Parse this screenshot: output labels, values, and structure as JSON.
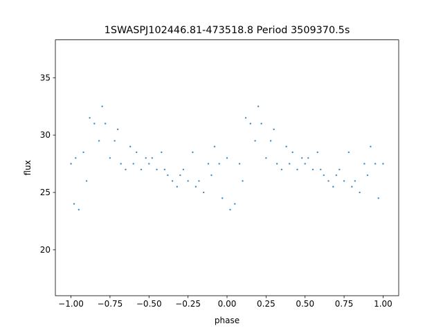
{
  "chart_data": {
    "type": "scatter",
    "title": "1SWASPJ102446.81-473518.8 Period 3509370.5s",
    "xlabel": "phase",
    "ylabel": "flux",
    "xlim": [
      -1.1,
      1.1
    ],
    "ylim": [
      16.0,
      38.3
    ],
    "xticks": [
      -1.0,
      -0.75,
      -0.5,
      -0.25,
      0.0,
      0.25,
      0.5,
      0.75,
      1.0
    ],
    "xtick_labels": [
      "−1.00",
      "−0.75",
      "−0.50",
      "−0.25",
      "0.00",
      "0.25",
      "0.50",
      "0.75",
      "1.00"
    ],
    "yticks": [
      20,
      25,
      30,
      35
    ],
    "ytick_labels": [
      "20",
      "25",
      "30",
      "35"
    ],
    "grid": false,
    "point_color": "#1f77b4",
    "series": [
      {
        "x": [
          -1.0,
          -0.98,
          -0.97,
          -0.95,
          -0.92,
          -0.9,
          -0.88,
          -0.85,
          -0.82,
          -0.8,
          -0.78,
          -0.75,
          -0.72,
          -0.7,
          -0.68,
          -0.65,
          -0.62,
          -0.6,
          -0.58,
          -0.55,
          -0.52,
          -0.5,
          -0.48,
          -0.45,
          -0.42,
          -0.4,
          -0.38,
          -0.35,
          -0.32,
          -0.3,
          -0.28,
          -0.25,
          -0.22,
          -0.2,
          -0.18,
          -0.15,
          -0.12,
          -0.1,
          -0.08,
          -0.05,
          -0.03,
          0.0,
          0.02,
          0.05,
          0.08,
          0.1,
          0.12,
          0.15,
          0.18,
          0.2,
          0.22,
          0.25,
          0.28,
          0.3,
          0.32,
          0.35,
          0.38,
          0.4,
          0.42,
          0.45,
          0.48,
          0.5,
          0.52,
          0.55,
          0.58,
          0.6,
          0.62,
          0.65,
          0.68,
          0.7,
          0.72,
          0.75,
          0.78,
          0.8,
          0.82,
          0.85,
          0.88,
          0.9,
          0.92,
          0.95,
          0.97,
          1.0
        ],
        "y": [
          27.5,
          24.0,
          28.0,
          23.5,
          28.5,
          26.0,
          31.5,
          31.0,
          29.5,
          32.5,
          31.0,
          28.0,
          29.5,
          30.5,
          27.5,
          27.0,
          29.0,
          27.5,
          28.5,
          27.0,
          28.0,
          27.5,
          28.0,
          27.0,
          28.5,
          27.0,
          26.5,
          26.0,
          25.5,
          26.5,
          27.0,
          26.0,
          28.5,
          25.5,
          26.0,
          25.0,
          27.5,
          26.5,
          29.0,
          27.5,
          24.5,
          28.0,
          23.5,
          24.0,
          27.5,
          26.0,
          31.5,
          31.0,
          29.5,
          32.5,
          31.0,
          28.0,
          29.5,
          30.5,
          27.5,
          27.0,
          29.0,
          27.5,
          28.5,
          27.0,
          28.0,
          27.5,
          28.0,
          27.0,
          28.5,
          27.0,
          26.5,
          26.0,
          25.5,
          26.5,
          27.0,
          26.0,
          28.5,
          25.5,
          26.0,
          25.0,
          27.5,
          26.5,
          29.0,
          27.5,
          24.5,
          27.5
        ]
      }
    ]
  }
}
